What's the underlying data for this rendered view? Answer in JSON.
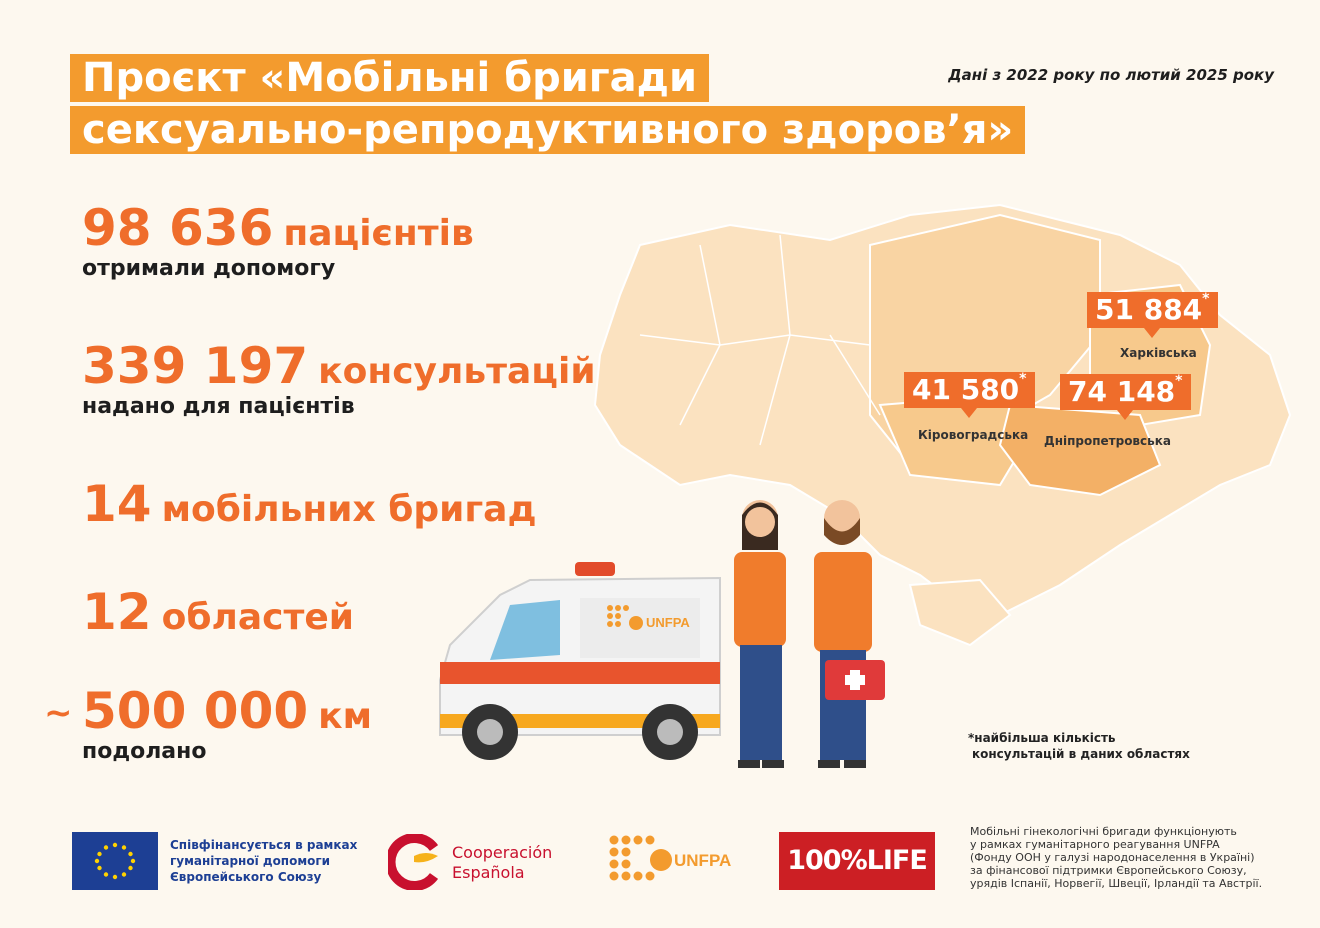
{
  "title": {
    "line1": "Проєкт «Мобільні бригади",
    "line2": "сексуально-репродуктивного здоров’я»"
  },
  "date_range": "Дані з 2022 року по лютий 2025 року",
  "stats": {
    "patients": {
      "number": "98 636",
      "unit": "пацієнтів",
      "desc": "отримали допомогу"
    },
    "consultations": {
      "number": "339 197",
      "unit": "консультацій",
      "desc": "надано для пацієнтів"
    },
    "brigades": {
      "number": "14",
      "unit": "мобільних бригад"
    },
    "regions": {
      "number": "12",
      "unit": "областей"
    },
    "distance": {
      "prefix": "~",
      "number": "500 000",
      "unit": "км",
      "desc": "подолано"
    }
  },
  "map": {
    "kharkiv": {
      "value": "51 884",
      "mark": "*",
      "label": "Харківська"
    },
    "kirovohrad": {
      "value": "41 580",
      "mark": "*",
      "label": "Кіровоградська"
    },
    "dnipro": {
      "value": "74 148",
      "mark": "*",
      "label": "Дніпропетровська"
    },
    "note_line1": "*найбільша кількість",
    "note_line2": "консультацій в даних областях"
  },
  "illustration": {
    "van_logo": "UNFPA"
  },
  "footer": {
    "eu_line1": "Співфінансується в рамках",
    "eu_line2": "гуманітарної допомоги",
    "eu_line3": "Європейського Союзу",
    "coop_line1": "Cooperación",
    "coop_line2": "Española",
    "unfpa": "UNFPA",
    "life": "100%LIFE",
    "note_lines": [
      "Мобільні гінекологічні бригади функціонують",
      "у рамках гуманітарного реагування UNFPA",
      "(Фонду ООН у галузі народонаселення в Україні)",
      "за фінансової підтримки Європейського Союзу,",
      "урядів Іспанії, Норвегії, Швеції, Ірландії та Австрії."
    ]
  },
  "colors": {
    "accent": "#ef6d2b",
    "title_bg": "#f39b2e",
    "map_light": "#fbe2c0",
    "map_mid": "#f7c98c",
    "map_dark": "#f3b066",
    "eu_blue": "#1d3f94",
    "life_red": "#cc1f24"
  }
}
